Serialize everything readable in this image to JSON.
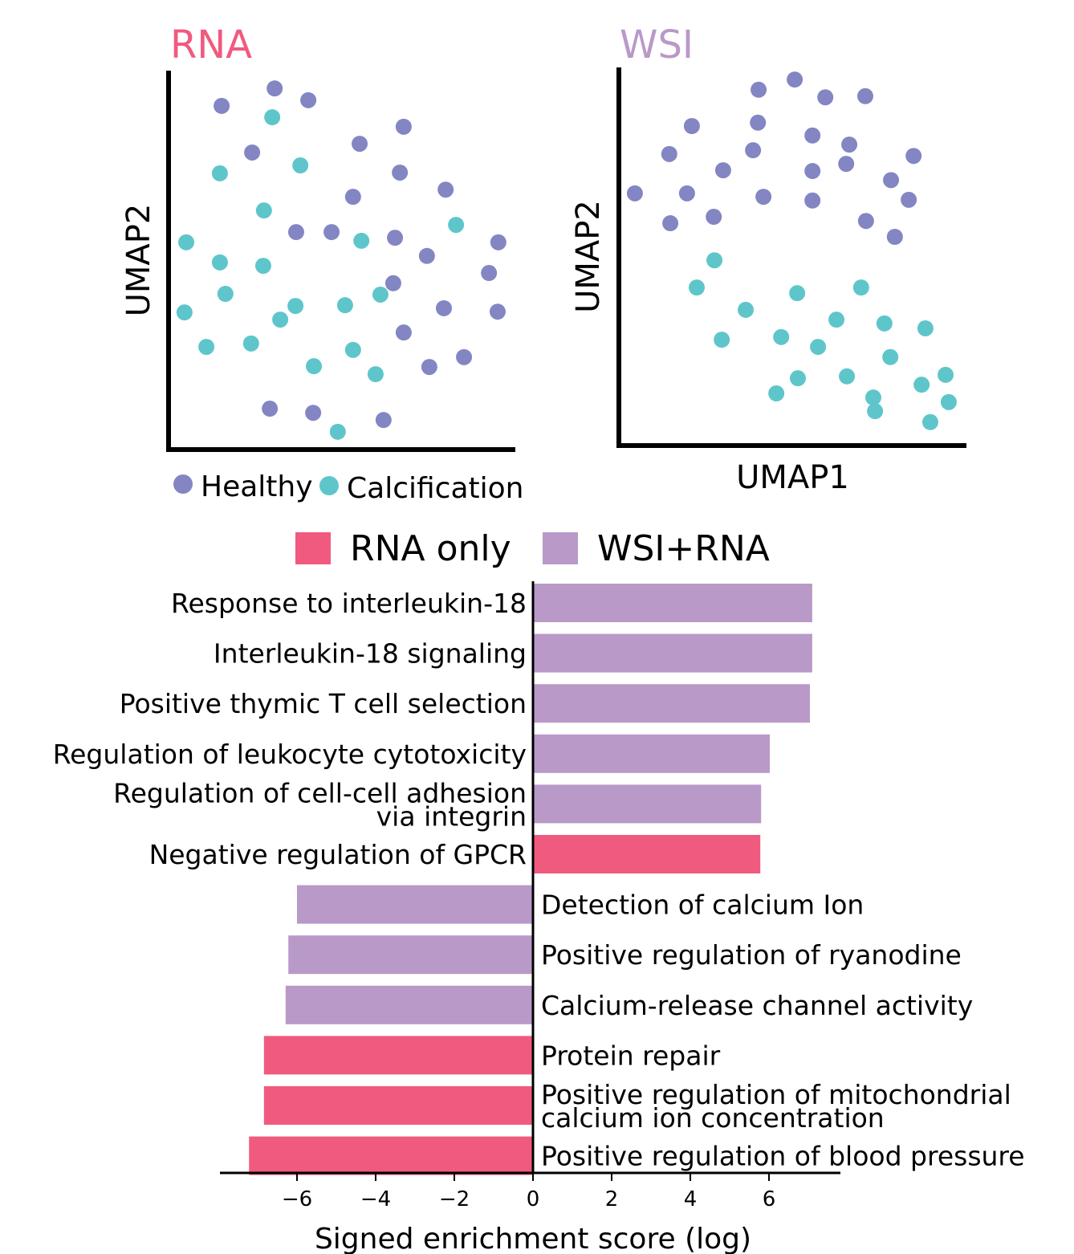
{
  "colors": {
    "healthy": "#8386c3",
    "calcification": "#5ec6cb",
    "rna_only": "#f05a7e",
    "wsi_rna": "#b999c8",
    "rna_title": "#f05a7e",
    "wsi_title": "#b999c8"
  },
  "chart_data": [
    {
      "type": "scatter",
      "title": "RNA",
      "xlabel": "",
      "ylabel": "UMAP2",
      "ticks": false,
      "legend": {
        "placement": "bottom",
        "entries": [
          "Healthy",
          "Calcification"
        ]
      },
      "series": [
        {
          "name": "Healthy",
          "points": [
            [
              1.53,
              9.07
            ],
            [
              3.06,
              9.53
            ],
            [
              4.03,
              9.22
            ],
            [
              6.78,
              8.52
            ],
            [
              5.51,
              8.07
            ],
            [
              2.41,
              7.84
            ],
            [
              6.67,
              7.31
            ],
            [
              7.99,
              6.86
            ],
            [
              5.32,
              6.67
            ],
            [
              3.68,
              5.74
            ],
            [
              4.7,
              5.74
            ],
            [
              6.53,
              5.59
            ],
            [
              9.51,
              5.47
            ],
            [
              7.45,
              5.11
            ],
            [
              9.24,
              4.66
            ],
            [
              6.48,
              4.39
            ],
            [
              7.94,
              3.73
            ],
            [
              9.49,
              3.64
            ],
            [
              6.78,
              3.09
            ],
            [
              8.52,
              2.44
            ],
            [
              7.52,
              2.18
            ],
            [
              2.92,
              1.08
            ],
            [
              4.17,
              0.97
            ],
            [
              6.2,
              0.78
            ]
          ]
        },
        {
          "name": "Calcification",
          "points": [
            [
              2.99,
              8.77
            ],
            [
              1.48,
              7.29
            ],
            [
              3.8,
              7.5
            ],
            [
              2.75,
              6.31
            ],
            [
              8.29,
              5.93
            ],
            [
              0.51,
              5.47
            ],
            [
              5.56,
              5.51
            ],
            [
              1.48,
              4.94
            ],
            [
              2.73,
              4.85
            ],
            [
              1.64,
              4.11
            ],
            [
              6.11,
              4.09
            ],
            [
              3.66,
              3.79
            ],
            [
              5.09,
              3.81
            ],
            [
              0.46,
              3.62
            ],
            [
              3.22,
              3.43
            ],
            [
              1.09,
              2.71
            ],
            [
              2.38,
              2.8
            ],
            [
              5.32,
              2.63
            ],
            [
              4.19,
              2.2
            ],
            [
              5.97,
              1.99
            ],
            [
              4.88,
              0.47
            ]
          ]
        }
      ]
    },
    {
      "type": "scatter",
      "title": "WSI",
      "xlabel": "UMAP1",
      "ylabel": "UMAP2",
      "ticks": false,
      "series": [
        {
          "name": "Healthy",
          "points": [
            [
              4.02,
              9.41
            ],
            [
              5.06,
              9.68
            ],
            [
              5.94,
              9.21
            ],
            [
              7.09,
              9.24
            ],
            [
              2.1,
              8.45
            ],
            [
              4.0,
              8.54
            ],
            [
              5.57,
              8.2
            ],
            [
              6.63,
              7.96
            ],
            [
              1.45,
              7.71
            ],
            [
              3.86,
              7.81
            ],
            [
              3.0,
              7.28
            ],
            [
              5.57,
              7.26
            ],
            [
              6.54,
              7.45
            ],
            [
              8.48,
              7.66
            ],
            [
              0.46,
              6.67
            ],
            [
              1.96,
              6.67
            ],
            [
              4.16,
              6.58
            ],
            [
              5.57,
              6.48
            ],
            [
              7.83,
              7.02
            ],
            [
              8.34,
              6.5
            ],
            [
              1.48,
              5.88
            ],
            [
              2.73,
              6.05
            ],
            [
              7.11,
              5.94
            ],
            [
              7.94,
              5.52
            ]
          ]
        },
        {
          "name": "Calcification",
          "points": [
            [
              2.75,
              4.9
            ],
            [
              2.24,
              4.18
            ],
            [
              5.13,
              4.03
            ],
            [
              6.97,
              4.18
            ],
            [
              3.65,
              3.59
            ],
            [
              6.26,
              3.33
            ],
            [
              7.64,
              3.23
            ],
            [
              8.82,
              3.1
            ],
            [
              2.96,
              2.8
            ],
            [
              4.67,
              2.87
            ],
            [
              5.73,
              2.61
            ],
            [
              7.81,
              2.34
            ],
            [
              5.15,
              1.78
            ],
            [
              6.56,
              1.83
            ],
            [
              8.71,
              1.61
            ],
            [
              9.4,
              1.87
            ],
            [
              4.53,
              1.38
            ],
            [
              7.32,
              1.27
            ],
            [
              9.49,
              1.15
            ],
            [
              7.37,
              0.91
            ],
            [
              8.96,
              0.62
            ]
          ]
        }
      ]
    },
    {
      "type": "bar",
      "orientation": "horizontal",
      "xlabel": "Signed enrichment score (log)",
      "xlim": [
        -8,
        7.8
      ],
      "xticks": [
        -6,
        -4,
        -2,
        0,
        2,
        4,
        6
      ],
      "xtick_labels": [
        "−6",
        "−4",
        "−2",
        "0",
        "2",
        "4",
        "6"
      ],
      "legend": {
        "placement": "top",
        "entries": [
          "RNA only",
          "WSI+RNA"
        ]
      },
      "categories": [
        [
          "Response to interleukin-18"
        ],
        [
          "Interleukin-18 signaling"
        ],
        [
          "Positive thymic T cell selection"
        ],
        [
          "Regulation of leukocyte cytotoxicity"
        ],
        [
          "Regulation of cell-cell adhesion",
          "via integrin"
        ],
        [
          "Negative regulation of GPCR"
        ],
        [
          "Detection of calcium Ion"
        ],
        [
          "Positive regulation of ryanodine"
        ],
        [
          "Calcium-release channel activity"
        ],
        [
          "Protein repair"
        ],
        [
          "Positive regulation of mitochondrial",
          "calcium ion concentration"
        ],
        [
          "Positive regulation of blood pressure"
        ]
      ],
      "values": [
        7.1,
        7.1,
        7.04,
        6.02,
        5.8,
        5.78,
        -6.0,
        -6.22,
        -6.29,
        -6.84,
        -6.84,
        -7.22
      ],
      "groups": [
        "WSI+RNA",
        "WSI+RNA",
        "WSI+RNA",
        "WSI+RNA",
        "WSI+RNA",
        "RNA only",
        "WSI+RNA",
        "WSI+RNA",
        "WSI+RNA",
        "RNA only",
        "RNA only",
        "RNA only"
      ]
    }
  ]
}
